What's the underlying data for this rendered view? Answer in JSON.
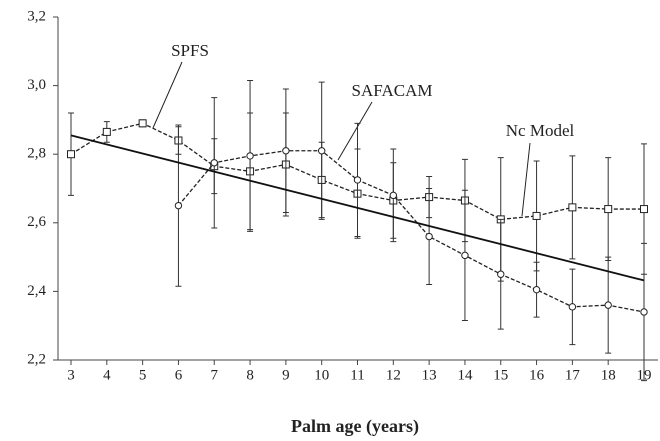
{
  "chart_data": {
    "type": "line",
    "xlabel": "Palm age (years)",
    "x": [
      3,
      4,
      5,
      6,
      7,
      8,
      9,
      10,
      11,
      12,
      13,
      14,
      15,
      16,
      17,
      18,
      19
    ],
    "xlim": [
      3,
      19
    ],
    "xticks": [
      3,
      4,
      5,
      6,
      7,
      8,
      9,
      10,
      11,
      12,
      13,
      14,
      15,
      16,
      17,
      18,
      19
    ],
    "ylim": [
      2.2,
      3.2
    ],
    "yticks": [
      {
        "value": 2.2,
        "label": "2,2"
      },
      {
        "value": 2.4,
        "label": "2,4"
      },
      {
        "value": 2.6,
        "label": "2,6"
      },
      {
        "value": 2.8,
        "label": "2,8"
      },
      {
        "value": 3.0,
        "label": "3,0"
      },
      {
        "value": 3.2,
        "label": "3,2"
      }
    ],
    "series": [
      {
        "name": "SPFS",
        "color": "#222222",
        "marker": "square",
        "values": [
          2.8,
          2.865,
          2.89,
          2.84,
          2.765,
          2.75,
          2.77,
          2.725,
          2.685,
          2.665,
          2.675,
          2.665,
          2.61,
          2.62,
          2.645,
          2.64,
          2.64
        ],
        "errors": [
          0.12,
          0.03,
          0.01,
          0.04,
          0.08,
          0.17,
          0.15,
          0.11,
          0.13,
          0.11,
          0.06,
          0.12,
          0.18,
          0.16,
          0.15,
          0.15,
          0.19
        ]
      },
      {
        "name": "SAFACAM",
        "color": "#222222",
        "marker": "circle",
        "values": [
          null,
          null,
          null,
          2.65,
          2.775,
          2.795,
          2.81,
          2.81,
          2.725,
          2.68,
          2.56,
          2.505,
          2.45,
          2.405,
          2.355,
          2.36,
          2.34
        ],
        "errors": [
          null,
          null,
          null,
          0.235,
          0.19,
          0.22,
          0.18,
          0.2,
          0.165,
          0.135,
          0.14,
          0.19,
          0.16,
          0.08,
          0.11,
          0.14,
          0.2
        ]
      },
      {
        "name": "Nc Model",
        "color": "#111111",
        "marker": "none",
        "x": [
          3,
          19
        ],
        "values": [
          2.855,
          2.432
        ]
      }
    ]
  }
}
